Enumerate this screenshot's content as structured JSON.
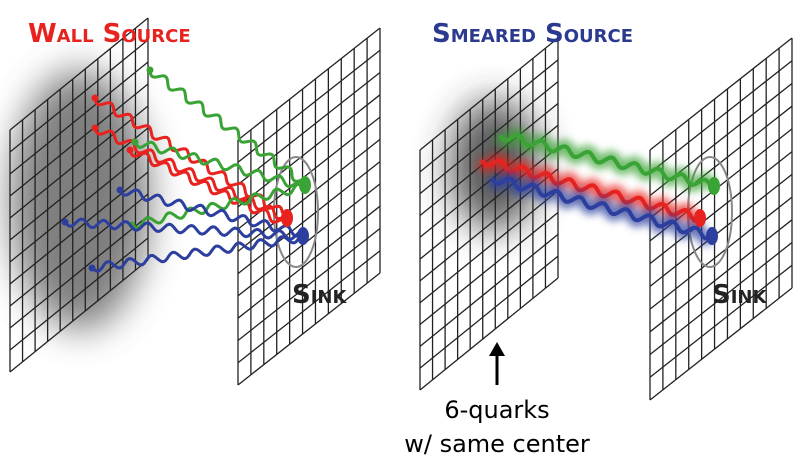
{
  "left_panel": {
    "title": "Wall Source",
    "sink_label": "Sink"
  },
  "right_panel": {
    "title": "Smeared Source",
    "sink_label": "Sink"
  },
  "caption": {
    "line1": "6-quarks",
    "line2": "w/ same center"
  }
}
